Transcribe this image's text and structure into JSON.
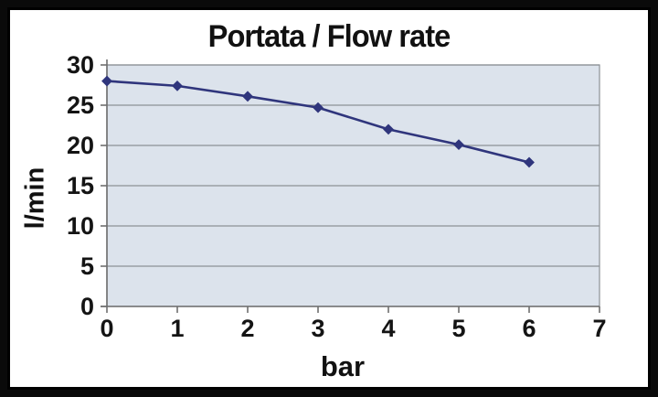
{
  "chart_data": {
    "type": "line",
    "title": "Portata / Flow rate",
    "xlabel": "bar",
    "ylabel": "l/min",
    "x": [
      0,
      1,
      2,
      3,
      4,
      5,
      6
    ],
    "series": [
      {
        "name": "Portata / Flow rate",
        "values": [
          28,
          27.4,
          26.1,
          24.7,
          22,
          20.1,
          17.9
        ]
      }
    ],
    "xlim": [
      0,
      7
    ],
    "ylim": [
      0,
      30
    ],
    "xticks": [
      0,
      1,
      2,
      3,
      4,
      5,
      6,
      7
    ],
    "yticks": [
      0,
      5,
      10,
      15,
      20,
      25,
      30
    ],
    "grid": "horizontal",
    "legend": "none",
    "marker": "diamond"
  },
  "colors": {
    "outer_background": "#0a0a0a",
    "frame_background": "#ffffff",
    "frame_border": "#000000",
    "plot_background": "#dce3ec",
    "gridline": "#8c9196",
    "axis": "#6f6f6f",
    "series_line": "#2f357c",
    "text": "#141414"
  }
}
